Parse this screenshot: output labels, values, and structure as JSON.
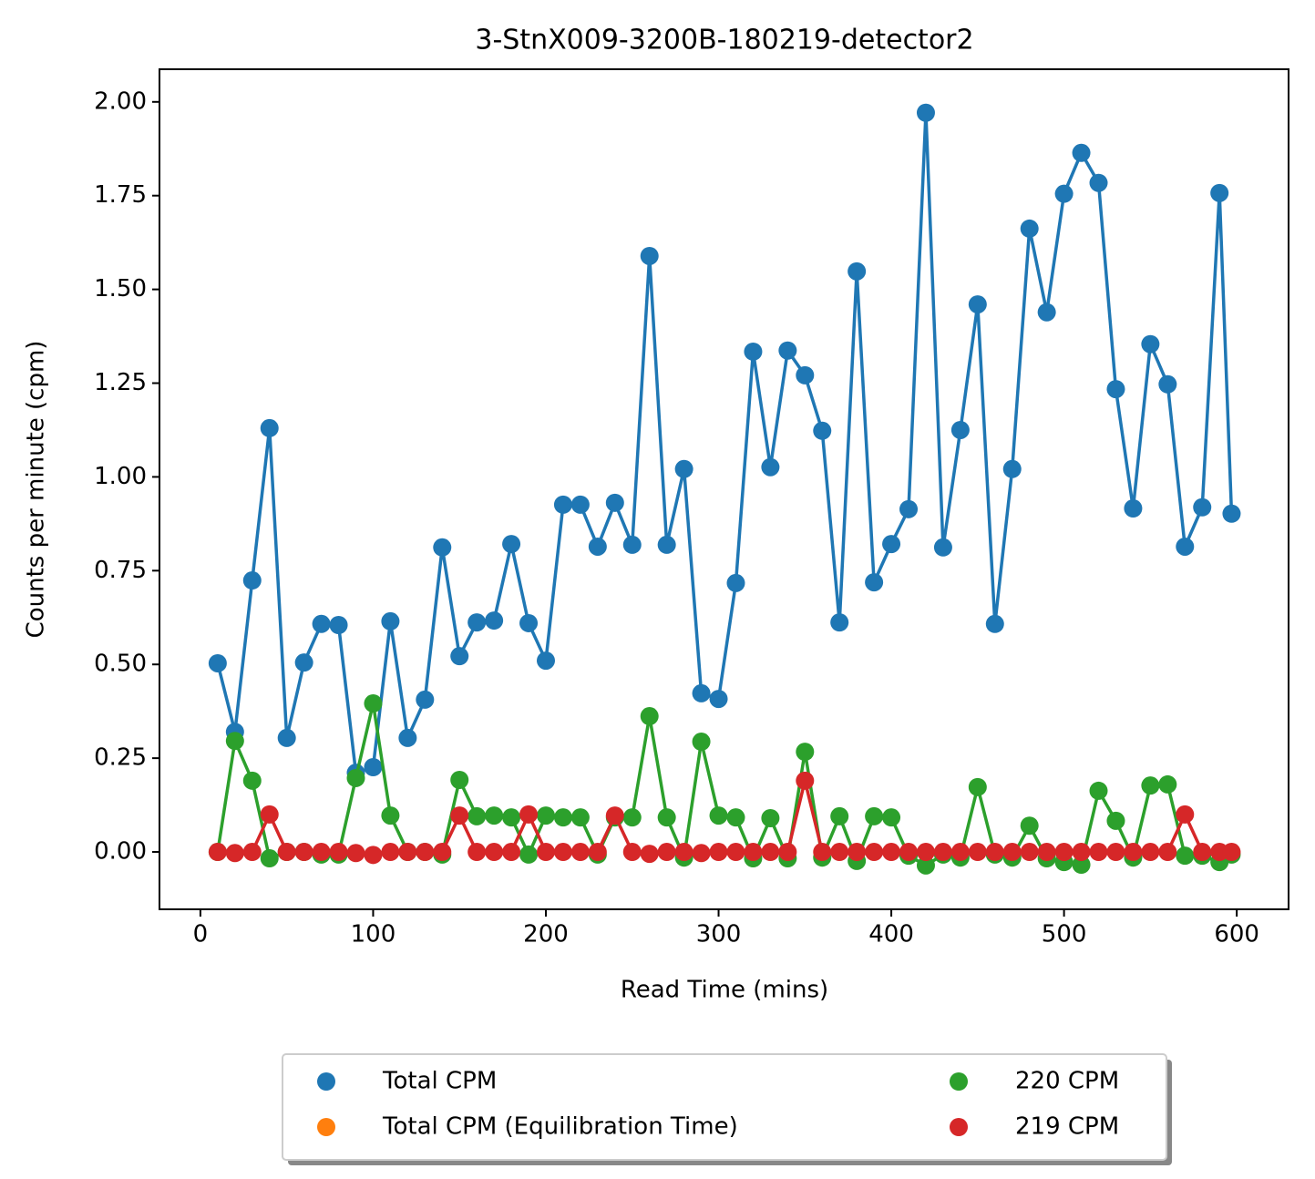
{
  "chart_data": {
    "type": "line",
    "title": "3-StnX009-3200B-180219-detector2",
    "xlabel": "Read Time (mins)",
    "ylabel": "Counts per minute (cpm)",
    "x": [
      10,
      20,
      30,
      40,
      50,
      60,
      70,
      80,
      90,
      100,
      110,
      120,
      130,
      140,
      150,
      160,
      170,
      180,
      190,
      200,
      210,
      220,
      230,
      240,
      250,
      260,
      270,
      280,
      290,
      300,
      310,
      320,
      330,
      340,
      350,
      360,
      370,
      380,
      390,
      400,
      410,
      420,
      430,
      440,
      450,
      460,
      470,
      480,
      490,
      500,
      510,
      520,
      530,
      540,
      550,
      560,
      570,
      580,
      590,
      597
    ],
    "series": [
      {
        "name": "Total CPM",
        "color": "#1f77b4",
        "values": [
          0.503,
          0.32,
          0.724,
          1.13,
          0.304,
          0.505,
          0.608,
          0.605,
          0.211,
          0.226,
          0.615,
          0.304,
          0.406,
          0.812,
          0.522,
          0.612,
          0.617,
          0.821,
          0.61,
          0.51,
          0.926,
          0.926,
          0.814,
          0.931,
          0.819,
          1.589,
          0.819,
          1.021,
          0.423,
          0.408,
          0.717,
          1.334,
          1.026,
          1.337,
          1.271,
          1.123,
          0.612,
          1.548,
          0.719,
          0.821,
          0.914,
          1.971,
          0.812,
          1.125,
          1.46,
          0.608,
          1.021,
          1.662,
          1.439,
          1.755,
          1.864,
          1.784,
          1.234,
          0.916,
          1.354,
          1.247,
          0.814,
          0.919,
          1.757,
          0.902
        ]
      },
      {
        "name": "Total CPM (Equilibration Time)",
        "color": "#ff7f0e",
        "values": [
          null,
          null,
          null,
          null,
          null,
          null,
          null,
          null,
          null,
          null,
          null,
          null,
          null,
          null,
          null,
          null,
          null,
          null,
          null,
          null,
          null,
          null,
          null,
          null,
          null,
          null,
          null,
          null,
          null,
          null,
          null,
          null,
          null,
          null,
          null,
          null,
          null,
          null,
          null,
          null,
          null,
          null,
          null,
          null,
          null,
          null,
          null,
          null,
          null,
          null,
          null,
          null,
          null,
          null,
          null,
          null,
          null,
          null,
          null,
          null
        ]
      },
      {
        "name": "220 CPM",
        "color": "#2ca02c",
        "values": [
          0,
          0.296,
          0.19,
          -0.017,
          0,
          0,
          -0.007,
          -0.007,
          0.197,
          0.396,
          0.097,
          0,
          0,
          -0.007,
          0.192,
          0.095,
          0.097,
          0.092,
          -0.007,
          0.097,
          0.092,
          0.092,
          -0.007,
          0.092,
          0.092,
          0.362,
          0.092,
          -0.015,
          0.294,
          0.097,
          0.092,
          -0.017,
          0.09,
          -0.017,
          0.267,
          -0.015,
          0.095,
          -0.024,
          0.095,
          0.092,
          -0.01,
          -0.036,
          -0.007,
          -0.015,
          0.173,
          -0.007,
          -0.015,
          0.07,
          -0.017,
          -0.027,
          -0.034,
          0.163,
          0.083,
          -0.015,
          0.177,
          0.18,
          -0.01,
          -0.01,
          -0.027,
          -0.007
        ]
      },
      {
        "name": "219 CPM",
        "color": "#d62728",
        "values": [
          0,
          -0.003,
          0,
          0.1,
          0,
          0,
          0,
          0,
          -0.003,
          -0.008,
          0,
          0,
          0,
          0,
          0.097,
          0,
          0,
          0,
          0.1,
          0,
          0,
          0,
          0,
          0.097,
          0,
          -0.005,
          0,
          0,
          -0.003,
          0,
          0,
          0,
          0,
          0,
          0.19,
          0,
          0,
          0,
          0,
          0,
          0,
          0,
          0,
          0,
          0,
          0,
          0,
          0,
          0,
          0,
          0,
          0,
          0,
          0,
          0,
          0,
          0.1,
          0,
          0,
          0
        ]
      }
    ],
    "xlim": [
      -23.7,
      630
    ],
    "ylim": [
      -0.153,
      2.087
    ],
    "xticks": [
      0,
      100,
      200,
      300,
      400,
      500,
      600
    ],
    "yticks": [
      {
        "value": 0,
        "label": "0.00"
      },
      {
        "value": 0.25,
        "label": "0.25"
      },
      {
        "value": 0.5,
        "label": "0.50"
      },
      {
        "value": 0.75,
        "label": "0.75"
      },
      {
        "value": 1,
        "label": "1.00"
      },
      {
        "value": 1.25,
        "label": "1.25"
      },
      {
        "value": 1.5,
        "label": "1.50"
      },
      {
        "value": 1.75,
        "label": "1.75"
      },
      {
        "value": 2,
        "label": "2.00"
      }
    ],
    "legend": "lower center outside"
  }
}
